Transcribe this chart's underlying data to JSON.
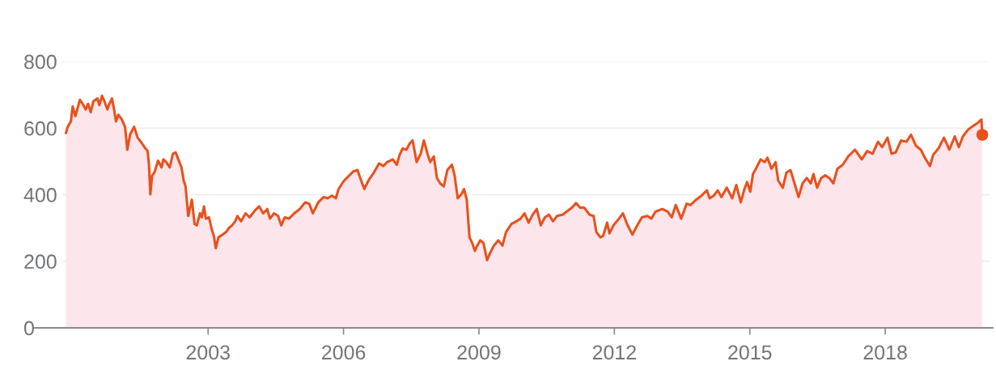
{
  "chart_data": {
    "type": "area",
    "xlim": [
      1999.77,
      2020.31
    ],
    "ylim": [
      0,
      800
    ],
    "xticks": [
      2003,
      2006,
      2009,
      2012,
      2015,
      2018
    ],
    "yticks": [
      0,
      200,
      400,
      600,
      800
    ],
    "grid": "y",
    "series": [
      {
        "color": "#e8511c",
        "x": [
          1999.85,
          1999.89,
          1999.96,
          2000.0,
          2000.06,
          2000.16,
          2000.22,
          2000.29,
          2000.34,
          2000.4,
          2000.46,
          2000.55,
          2000.59,
          2000.65,
          2000.69,
          2000.77,
          2000.8,
          2000.87,
          2000.9,
          2000.96,
          2001.01,
          2001.08,
          2001.16,
          2001.21,
          2001.27,
          2001.36,
          2001.44,
          2001.53,
          2001.59,
          2001.66,
          2001.69,
          2001.72,
          2001.76,
          2001.81,
          2001.89,
          2001.97,
          2002.01,
          2002.07,
          2002.15,
          2002.22,
          2002.28,
          2002.34,
          2002.41,
          2002.46,
          2002.5,
          2002.56,
          2002.64,
          2002.7,
          2002.75,
          2002.82,
          2002.86,
          2002.91,
          2002.95,
          2003.02,
          2003.08,
          2003.13,
          2003.17,
          2003.23,
          2003.32,
          2003.4,
          2003.46,
          2003.53,
          2003.6,
          2003.65,
          2003.73,
          2003.83,
          2003.92,
          2004.04,
          2004.13,
          2004.22,
          2004.31,
          2004.37,
          2004.46,
          2004.55,
          2004.62,
          2004.7,
          2004.79,
          2004.91,
          2005.03,
          2005.15,
          2005.24,
          2005.32,
          2005.44,
          2005.56,
          2005.65,
          2005.74,
          2005.83,
          2005.89,
          2006.01,
          2006.13,
          2006.22,
          2006.31,
          2006.37,
          2006.46,
          2006.55,
          2006.67,
          2006.79,
          2006.88,
          2006.97,
          2007.09,
          2007.18,
          2007.24,
          2007.31,
          2007.39,
          2007.47,
          2007.53,
          2007.62,
          2007.71,
          2007.78,
          2007.86,
          2007.92,
          2008.0,
          2008.07,
          2008.14,
          2008.22,
          2008.3,
          2008.4,
          2008.46,
          2008.53,
          2008.61,
          2008.67,
          2008.73,
          2008.79,
          2008.85,
          2008.91,
          2008.96,
          2009.03,
          2009.1,
          2009.18,
          2009.24,
          2009.33,
          2009.43,
          2009.52,
          2009.6,
          2009.72,
          2009.83,
          2009.92,
          2010.01,
          2010.1,
          2010.19,
          2010.28,
          2010.37,
          2010.46,
          2010.55,
          2010.64,
          2010.73,
          2010.85,
          2010.94,
          2011.06,
          2011.15,
          2011.24,
          2011.33,
          2011.45,
          2011.54,
          2011.6,
          2011.69,
          2011.75,
          2011.84,
          2011.89,
          2011.98,
          2012.1,
          2012.19,
          2012.28,
          2012.4,
          2012.49,
          2012.61,
          2012.73,
          2012.82,
          2012.91,
          2013.06,
          2013.18,
          2013.27,
          2013.36,
          2013.48,
          2013.6,
          2013.69,
          2013.81,
          2013.93,
          2014.05,
          2014.11,
          2014.2,
          2014.29,
          2014.37,
          2014.49,
          2014.61,
          2014.7,
          2014.8,
          2014.88,
          2014.94,
          2015.01,
          2015.07,
          2015.15,
          2015.24,
          2015.33,
          2015.39,
          2015.48,
          2015.57,
          2015.63,
          2015.73,
          2015.81,
          2015.9,
          2015.99,
          2016.08,
          2016.17,
          2016.26,
          2016.35,
          2016.41,
          2016.49,
          2016.58,
          2016.67,
          2016.76,
          2016.85,
          2016.94,
          2017.06,
          2017.18,
          2017.33,
          2017.48,
          2017.6,
          2017.72,
          2017.84,
          2017.93,
          2018.05,
          2018.14,
          2018.23,
          2018.35,
          2018.47,
          2018.57,
          2018.68,
          2018.79,
          2018.86,
          2018.99,
          2019.06,
          2019.18,
          2019.3,
          2019.42,
          2019.54,
          2019.63,
          2019.72,
          2019.84,
          2019.96,
          2020.05,
          2020.13,
          2020.15
        ],
        "values": [
          585,
          604,
          620,
          665,
          636,
          685,
          673,
          656,
          673,
          648,
          681,
          689,
          669,
          697,
          685,
          656,
          669,
          689,
          669,
          620,
          640,
          628,
          604,
          535,
          580,
          604,
          571,
          555,
          543,
          531,
          490,
          401,
          458,
          466,
          502,
          482,
          506,
          498,
          482,
          523,
          527,
          506,
          482,
          442,
          425,
          336,
          385,
          312,
          308,
          344,
          332,
          365,
          328,
          332,
          296,
          275,
          239,
          272,
          280,
          288,
          300,
          308,
          320,
          336,
          320,
          344,
          332,
          353,
          365,
          344,
          357,
          328,
          344,
          336,
          308,
          332,
          328,
          344,
          357,
          377,
          373,
          344,
          377,
          393,
          389,
          397,
          389,
          417,
          442,
          458,
          470,
          474,
          450,
          417,
          442,
          466,
          494,
          486,
          498,
          506,
          490,
          519,
          539,
          535,
          555,
          563,
          498,
          523,
          563,
          523,
          498,
          515,
          450,
          434,
          425,
          474,
          490,
          458,
          389,
          401,
          417,
          385,
          272,
          255,
          231,
          247,
          263,
          255,
          203,
          223,
          247,
          263,
          247,
          288,
          312,
          320,
          328,
          344,
          316,
          340,
          357,
          308,
          332,
          340,
          320,
          336,
          340,
          349,
          361,
          375,
          361,
          361,
          340,
          336,
          288,
          272,
          276,
          316,
          284,
          308,
          328,
          344,
          312,
          280,
          304,
          332,
          336,
          328,
          349,
          357,
          349,
          332,
          369,
          328,
          373,
          369,
          385,
          397,
          413,
          389,
          397,
          413,
          393,
          421,
          389,
          429,
          377,
          417,
          438,
          409,
          462,
          482,
          506,
          498,
          511,
          478,
          498,
          442,
          421,
          466,
          474,
          434,
          393,
          434,
          450,
          434,
          462,
          421,
          450,
          458,
          450,
          434,
          478,
          490,
          515,
          535,
          506,
          531,
          523,
          559,
          543,
          571,
          523,
          527,
          563,
          559,
          580,
          547,
          535,
          515,
          486,
          519,
          539,
          571,
          535,
          575,
          543,
          575,
          596,
          608,
          616,
          626,
          580
        ]
      },
      {
        "type": "scatter",
        "marker": "circle",
        "color": "#e8511c",
        "x": [
          2020.15
        ],
        "values": [
          580
        ]
      }
    ]
  }
}
